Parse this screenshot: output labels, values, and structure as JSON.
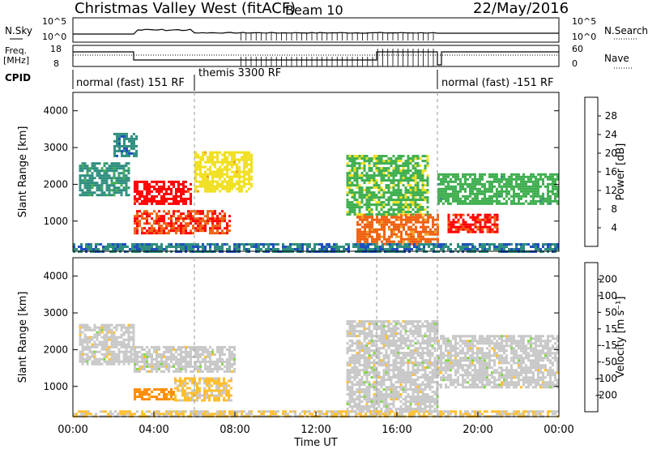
{
  "header": {
    "title": "Christmas Valley West (fitACF)",
    "beam": "Beam 10",
    "date": "22/May/2016"
  },
  "nsky_panel": {
    "left_label": "N.Sky",
    "right_label": "N.Search",
    "left_ticks": [
      "10^5",
      "10^0"
    ],
    "right_ticks": [
      "10^5",
      "10^0"
    ]
  },
  "freq_panel": {
    "left_label_1": "Freq.",
    "left_label_2": "[MHz]",
    "right_label": "Nave",
    "left_ticks": [
      "18",
      "8"
    ],
    "right_ticks": [
      "60",
      "0"
    ]
  },
  "cpid_panel": {
    "label": "CPID",
    "modes": [
      {
        "name": "normal (fast) 151 RF",
        "start_hour": 0,
        "end_hour": 6
      },
      {
        "name": "themis 3300 RF",
        "start_hour": 6,
        "end_hour": 18
      },
      {
        "name": "normal (fast) -151 RF",
        "start_hour": 18,
        "end_hour": 24
      }
    ]
  },
  "colors": {
    "power_scale": [
      "#0000ff",
      "#1f4fbf",
      "#2f8f7f",
      "#3faf4f",
      "#f0e020",
      "#f0a020",
      "#f06010",
      "#ff0000"
    ],
    "velocity_scale": [
      "#ff0000",
      "#ff5000",
      "#ff8c00",
      "#ffbf30",
      "#c8c8c8",
      "#80d840",
      "#2f9f5f",
      "#1f4fbf",
      "#0000ff"
    ],
    "ground_scatter": "#c0c0c0"
  },
  "chart_data": [
    {
      "type": "heatmap",
      "title": "",
      "xlabel": "",
      "ylabel": "Slant Range [km]",
      "xlim": [
        0,
        24
      ],
      "ylim": [
        180,
        4500
      ],
      "x_ticks": [],
      "y_ticks": [
        "1000",
        "2000",
        "3000",
        "4000"
      ],
      "colorbar": {
        "label": "Power [dB]",
        "ticks": [
          "4",
          "8",
          "12",
          "16",
          "20",
          "24",
          "28"
        ],
        "range": [
          0,
          30
        ]
      },
      "regions": [
        {
          "t0": 3.0,
          "t1": 5.8,
          "r0": 1500,
          "r1": 2100,
          "value": 28
        },
        {
          "t0": 3.0,
          "t1": 7.8,
          "r0": 700,
          "r1": 1300,
          "value": 26
        },
        {
          "t0": 0.3,
          "t1": 2.8,
          "r0": 1700,
          "r1": 2600,
          "value": 10
        },
        {
          "t0": 2.0,
          "t1": 3.2,
          "r0": 2800,
          "r1": 3400,
          "value": 9
        },
        {
          "t0": 6.0,
          "t1": 8.8,
          "r0": 1800,
          "r1": 2900,
          "value": 17
        },
        {
          "t0": 14.0,
          "t1": 18.0,
          "r0": 400,
          "r1": 1200,
          "value": 24
        },
        {
          "t0": 13.5,
          "t1": 17.5,
          "r0": 1200,
          "r1": 2800,
          "value": 14
        },
        {
          "t0": 18.0,
          "t1": 24.0,
          "r0": 1500,
          "r1": 2300,
          "value": 13
        },
        {
          "t0": 18.5,
          "t1": 21.0,
          "r0": 700,
          "r1": 1200,
          "value": 27
        },
        {
          "t0": 0.0,
          "t1": 24.0,
          "r0": 200,
          "r1": 400,
          "value": 8
        }
      ]
    },
    {
      "type": "heatmap",
      "title": "",
      "xlabel": "Time UT",
      "ylabel": "Slant Range [km]",
      "xlim": [
        0,
        24
      ],
      "ylim": [
        180,
        4500
      ],
      "x_ticks": [
        "00:00",
        "04:00",
        "08:00",
        "12:00",
        "16:00",
        "20:00",
        "00:00"
      ],
      "y_ticks": [
        "1000",
        "2000",
        "3000",
        "4000"
      ],
      "colorbar": {
        "label": "Velocity [m s⁻¹]",
        "ticks": [
          "-200",
          "-100",
          "-50",
          "-15",
          "15",
          "50",
          "100",
          "200"
        ],
        "range": [
          -250,
          250
        ]
      },
      "regions": [
        {
          "t0": 3.0,
          "t1": 8.0,
          "r0": 1400,
          "r1": 2100,
          "value": 0
        },
        {
          "t0": 0.3,
          "t1": 3.0,
          "r0": 1600,
          "r1": 2700,
          "value": 0
        },
        {
          "t0": 3.0,
          "t1": 5.0,
          "r0": 650,
          "r1": 950,
          "value": -110
        },
        {
          "t0": 5.0,
          "t1": 7.8,
          "r0": 650,
          "r1": 1250,
          "value": -40
        },
        {
          "t0": 13.5,
          "t1": 18.0,
          "r0": 300,
          "r1": 2800,
          "value": 0
        },
        {
          "t0": 18.0,
          "t1": 24.0,
          "r0": 1000,
          "r1": 2400,
          "value": 0
        },
        {
          "t0": 0.0,
          "t1": 24.0,
          "r0": 200,
          "r1": 350,
          "value": -30
        }
      ]
    }
  ]
}
